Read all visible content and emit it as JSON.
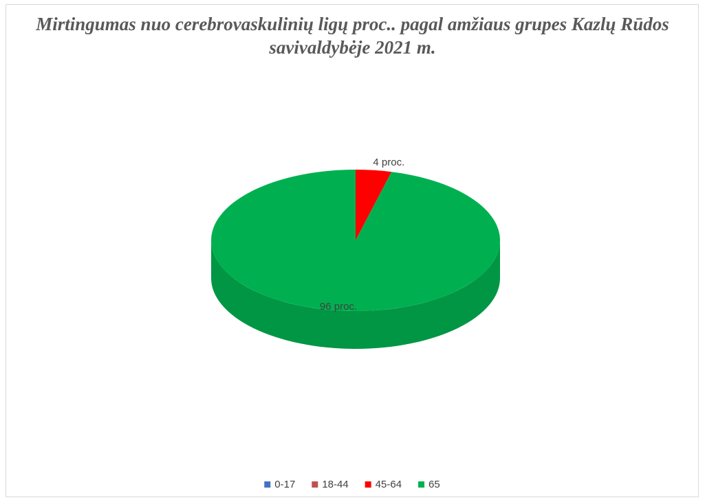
{
  "chart_data": {
    "type": "pie3d",
    "title": "Mirtingumas nuo cerebrovaskulinių ligų proc.. pagal amžiaus grupes Kazlų Rūdos savivaldybėje 2021 m.",
    "categories": [
      "0-17",
      "18-44",
      "45-64",
      "65"
    ],
    "values": [
      0,
      0,
      4,
      96
    ],
    "value_labels": [
      null,
      null,
      "4 proc.",
      "96 proc."
    ],
    "colors": [
      "#4472c4",
      "#c0504d",
      "#ff0000",
      "#00b050"
    ],
    "legend": "bottom"
  }
}
